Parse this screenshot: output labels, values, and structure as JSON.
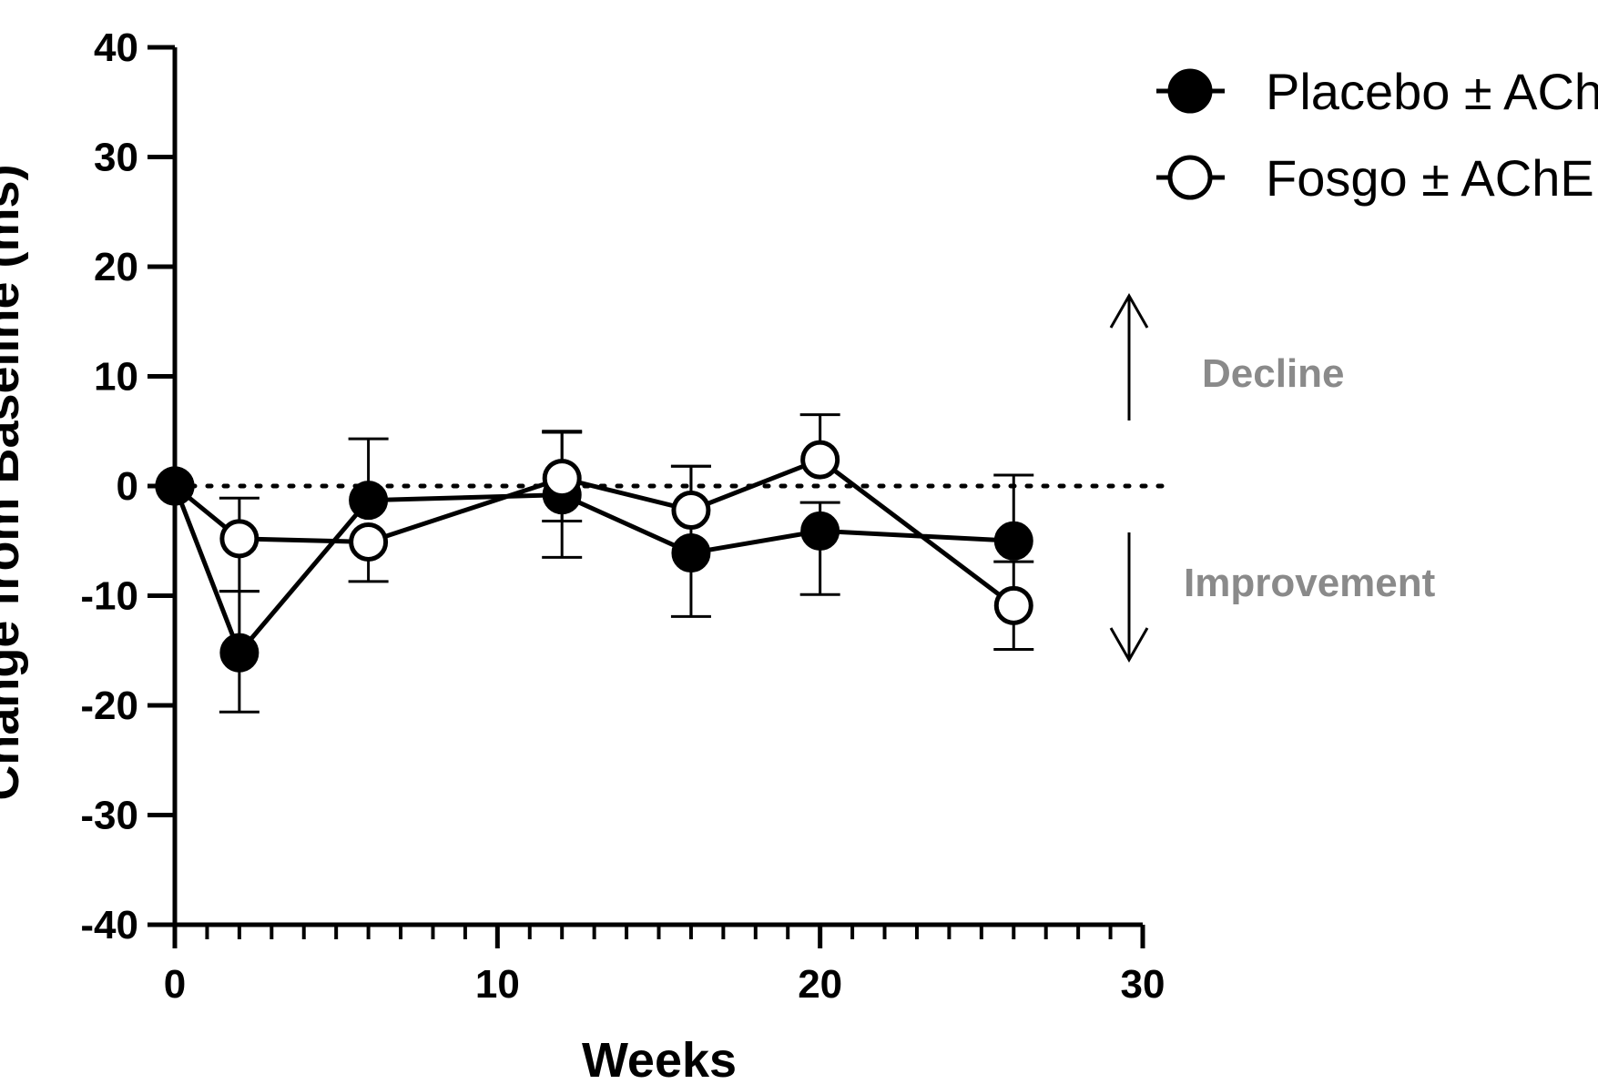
{
  "chart_data": {
    "type": "line",
    "title": "",
    "xlabel": "Weeks",
    "ylabel": "Change from Baseline (ms)",
    "xlim": [
      0,
      30
    ],
    "ylim": [
      -40,
      40
    ],
    "x_ticks": [
      "0",
      "10",
      "20",
      "30"
    ],
    "y_ticks": [
      "-40",
      "-30",
      "-20",
      "-10",
      "0",
      "10",
      "20",
      "30",
      "40"
    ],
    "reference_line": {
      "y": 0,
      "style": "dotted"
    },
    "legend_position": "top-right",
    "series": [
      {
        "name": "Placebo ± AChEI",
        "marker": "filled-circle",
        "x": [
          0,
          2,
          6,
          12,
          16,
          20,
          26
        ],
        "y": [
          0,
          -15.2,
          -1.3,
          -0.8,
          -6.1,
          -4.1,
          -5
        ],
        "err_low": [
          0,
          5.4,
          0,
          5.7,
          5.8,
          5.8,
          0
        ],
        "err_high": [
          0,
          5.6,
          5.6,
          5.7,
          7.9,
          2.6,
          6
        ]
      },
      {
        "name": "Fosgo ± AChEI",
        "marker": "open-circle",
        "x": [
          0,
          2,
          6,
          12,
          16,
          20,
          26
        ],
        "y": [
          0,
          -4.8,
          -5.1,
          0.7,
          -2.2,
          2.4,
          -10.9
        ],
        "err_low": [
          0,
          4.8,
          3.6,
          3.9,
          0,
          0,
          4
        ],
        "err_high": [
          0,
          3.7,
          0,
          4.3,
          4,
          4.1,
          4
        ]
      }
    ],
    "annotations": [
      {
        "text": "Decline",
        "direction": "up"
      },
      {
        "text": "Improvement",
        "direction": "down"
      }
    ]
  }
}
